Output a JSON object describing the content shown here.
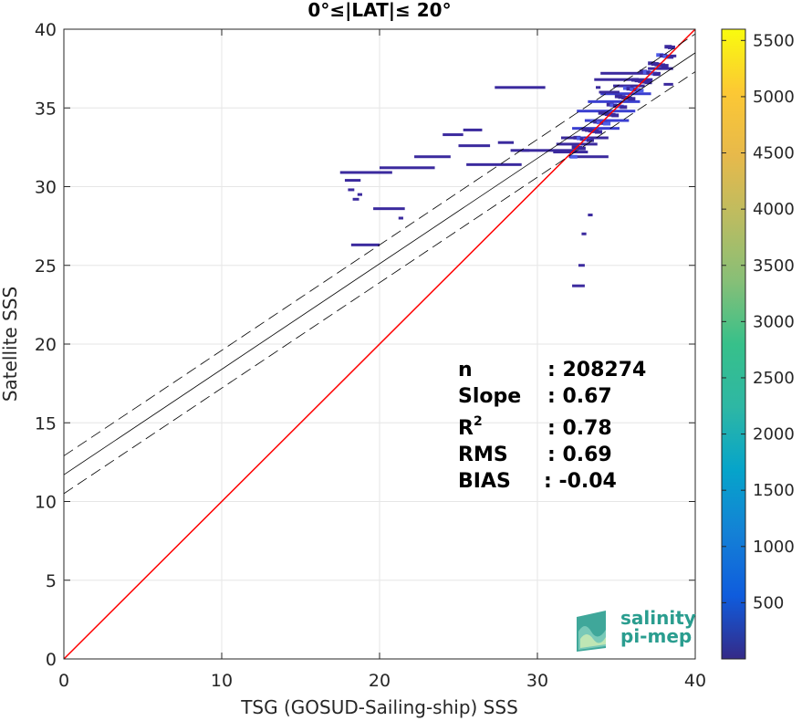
{
  "chart_data": {
    "type": "heatmap",
    "title": "0°≤|LAT|≤ 20°",
    "xlabel": "TSG (GOSUD-Sailing-ship) SSS",
    "ylabel": "Satellite SSS",
    "xlim": [
      0,
      40
    ],
    "ylim": [
      0,
      40
    ],
    "x_ticks": [
      "0",
      "10",
      "20",
      "30",
      "40"
    ],
    "y_ticks": [
      "0",
      "5",
      "10",
      "15",
      "20",
      "25",
      "30",
      "35",
      "40"
    ],
    "grid": true,
    "colorbar": {
      "range": [
        0,
        5600
      ],
      "ticks": [
        "500",
        "1000",
        "1500",
        "2000",
        "2500",
        "3000",
        "3500",
        "4000",
        "4500",
        "5000",
        "5500"
      ],
      "colormap": "parula"
    },
    "lines": [
      {
        "name": "identity",
        "color": "#ff0000",
        "style": "solid",
        "x": [
          0,
          40
        ],
        "y": [
          0,
          40
        ]
      },
      {
        "name": "regression",
        "color": "#000000",
        "style": "solid",
        "x": [
          0,
          40
        ],
        "y": [
          11.7,
          38.5
        ]
      },
      {
        "name": "regression-upper",
        "color": "#000000",
        "style": "dashed",
        "x": [
          0,
          40
        ],
        "y": [
          12.9,
          39.7
        ]
      },
      {
        "name": "regression-lower",
        "color": "#000000",
        "style": "dashed",
        "x": [
          0,
          40
        ],
        "y": [
          10.5,
          37.3
        ]
      }
    ],
    "stats": [
      {
        "label": "n",
        "value": ": 208274"
      },
      {
        "label": "Slope",
        "value": ": 0.67"
      },
      {
        "label": "R",
        "sup": "2",
        "value": ": 0.78"
      },
      {
        "label": "RMS",
        "value": ": 0.69"
      },
      {
        "label": "BIAS",
        "value": ": -0.04"
      }
    ],
    "density_segments": [
      {
        "x0": 34.8,
        "x1": 36.8,
        "y": 36.4,
        "count": 400
      },
      {
        "x0": 34.0,
        "x1": 37.2,
        "y": 35.9,
        "count": 600
      },
      {
        "x0": 33.2,
        "x1": 36.5,
        "y": 35.4,
        "count": 700
      },
      {
        "x0": 32.5,
        "x1": 36.2,
        "y": 34.8,
        "count": 800
      },
      {
        "x0": 33.0,
        "x1": 35.8,
        "y": 34.2,
        "count": 700
      },
      {
        "x0": 32.2,
        "x1": 35.2,
        "y": 33.7,
        "count": 600
      },
      {
        "x0": 31.5,
        "x1": 34.5,
        "y": 33.1,
        "count": 500
      },
      {
        "x0": 31.2,
        "x1": 33.8,
        "y": 32.7,
        "count": 400
      },
      {
        "x0": 37.0,
        "x1": 38.6,
        "y": 37.5,
        "count": 300
      },
      {
        "x0": 37.8,
        "x1": 38.8,
        "y": 38.3,
        "count": 300
      },
      {
        "x0": 33.6,
        "x1": 37.3,
        "y": 36.8,
        "count": 250
      },
      {
        "x0": 34.0,
        "x1": 37.8,
        "y": 37.2,
        "count": 200
      },
      {
        "x0": 33.9,
        "x1": 35.2,
        "y": 36.0,
        "count": 200
      },
      {
        "x0": 33.7,
        "x1": 34.0,
        "y": 36.3,
        "count": 150
      },
      {
        "x0": 27.3,
        "x1": 30.5,
        "y": 36.3,
        "count": 120
      },
      {
        "x0": 25.0,
        "x1": 27.0,
        "y": 32.6,
        "count": 120
      },
      {
        "x0": 28.3,
        "x1": 29.5,
        "y": 32.3,
        "count": 120
      },
      {
        "x0": 29.0,
        "x1": 32.5,
        "y": 32.3,
        "count": 150
      },
      {
        "x0": 31.0,
        "x1": 33.2,
        "y": 32.2,
        "count": 180
      },
      {
        "x0": 32.0,
        "x1": 34.5,
        "y": 31.9,
        "count": 200
      },
      {
        "x0": 27.5,
        "x1": 28.5,
        "y": 32.8,
        "count": 120
      },
      {
        "x0": 24.0,
        "x1": 25.3,
        "y": 33.3,
        "count": 100
      },
      {
        "x0": 25.3,
        "x1": 26.5,
        "y": 33.6,
        "count": 100
      },
      {
        "x0": 22.2,
        "x1": 24.5,
        "y": 31.9,
        "count": 100
      },
      {
        "x0": 25.5,
        "x1": 29.0,
        "y": 31.4,
        "count": 100
      },
      {
        "x0": 20.0,
        "x1": 23.5,
        "y": 31.2,
        "count": 100
      },
      {
        "x0": 17.5,
        "x1": 20.8,
        "y": 30.9,
        "count": 120
      },
      {
        "x0": 17.8,
        "x1": 18.8,
        "y": 30.4,
        "count": 100
      },
      {
        "x0": 18.0,
        "x1": 18.4,
        "y": 29.8,
        "count": 100
      },
      {
        "x0": 18.6,
        "x1": 18.9,
        "y": 29.5,
        "count": 100
      },
      {
        "x0": 18.3,
        "x1": 18.7,
        "y": 29.2,
        "count": 100
      },
      {
        "x0": 19.6,
        "x1": 21.6,
        "y": 28.6,
        "count": 100
      },
      {
        "x0": 21.2,
        "x1": 21.5,
        "y": 28.0,
        "count": 100
      },
      {
        "x0": 18.2,
        "x1": 20.0,
        "y": 26.3,
        "count": 100
      },
      {
        "x0": 32.6,
        "x1": 33.0,
        "y": 25.0,
        "count": 100
      },
      {
        "x0": 32.2,
        "x1": 33.0,
        "y": 23.7,
        "count": 100
      },
      {
        "x0": 33.2,
        "x1": 33.5,
        "y": 28.2,
        "count": 100
      },
      {
        "x0": 32.8,
        "x1": 33.1,
        "y": 27.0,
        "count": 100
      },
      {
        "x0": 38.0,
        "x1": 38.6,
        "y": 36.5,
        "count": 150
      }
    ]
  },
  "logo": {
    "line1": "salinity",
    "line2": "pi-mep"
  },
  "colors": {
    "identity_line": "#ff0000",
    "regression_line": "#000000",
    "logo_accent": "#2a9d8f"
  }
}
